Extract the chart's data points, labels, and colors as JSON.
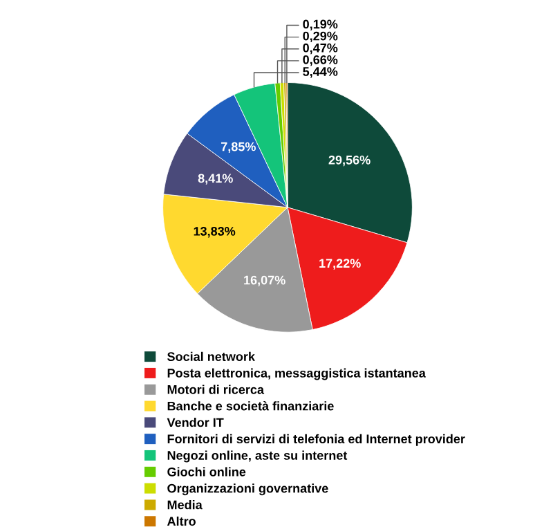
{
  "chart_data": {
    "type": "pie",
    "categories": [
      "Social network",
      "Posta elettronica, messaggistica istantanea",
      "Motori di ricerca",
      "Banche e società finanziarie",
      "Vendor IT",
      "Fornitori di servizi di telefonia ed Internet provider",
      "Negozi online, aste su internet",
      "Giochi online",
      "Organizzazioni governative",
      "Media",
      "Altro"
    ],
    "values": [
      29.56,
      17.22,
      16.07,
      13.83,
      8.41,
      7.85,
      5.44,
      0.66,
      0.47,
      0.29,
      0.19
    ],
    "value_labels": [
      "29,56%",
      "17,22%",
      "16,07%",
      "13,83%",
      "8,41%",
      "7,85%",
      "5,44%",
      "0,66%",
      "0,47%",
      "0,29%",
      "0,19%"
    ],
    "colors": [
      "#0e4a3a",
      "#ee1c1c",
      "#999999",
      "#ffd92f",
      "#4a4a7a",
      "#1f5fbf",
      "#14c47a",
      "#66cc00",
      "#ccdd00",
      "#ccaa00",
      "#cc7700"
    ],
    "legend": "bottom"
  }
}
